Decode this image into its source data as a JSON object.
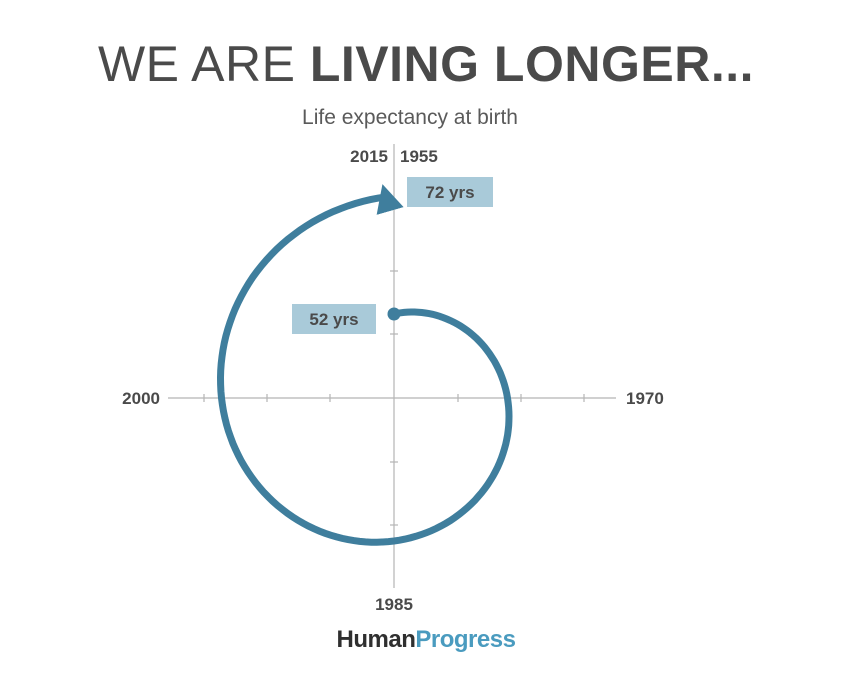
{
  "header": {
    "title_light": "WE ARE ",
    "title_bold": "LIVING LONGER...",
    "subtitle": "Life expectancy at birth"
  },
  "chart_data": {
    "type": "line",
    "layout": "radial spiral",
    "title": "WE ARE LIVING LONGER...",
    "subtitle": "Life expectancy at birth",
    "axis_labels": {
      "top_left": "2015",
      "top_right": "1955",
      "right": "1970",
      "bottom": "1985",
      "left": "2000"
    },
    "x": [
      1955,
      1970,
      1985,
      2000,
      2015
    ],
    "values": [
      52,
      57,
      62,
      67,
      72
    ],
    "annotations": [
      {
        "label": "52 yrs",
        "year": 1955
      },
      {
        "label": "72 yrs",
        "year": 2015
      }
    ],
    "colors": {
      "line": "#3f7e9d",
      "label_bg": "#a9cad9",
      "axis": "#b5b5b5",
      "text": "#4a4a4a"
    }
  },
  "branding": {
    "logo_part1": "Human",
    "logo_part2": "Progress",
    "logo_color1": "#2f2f2f",
    "logo_color2": "#4a9bbf"
  }
}
